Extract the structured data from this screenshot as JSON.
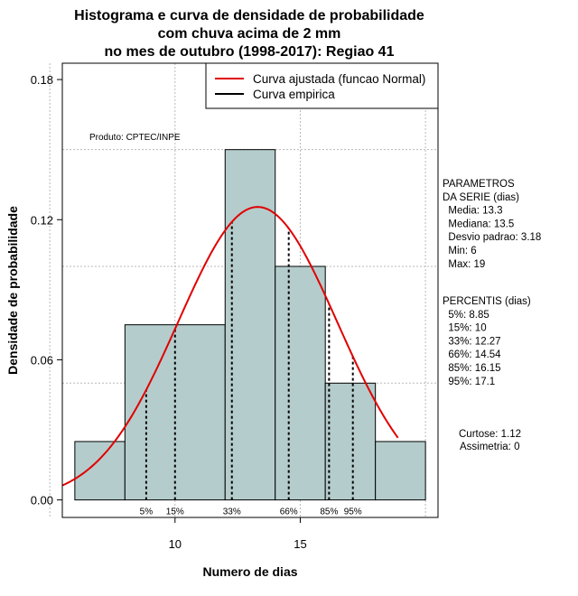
{
  "chart_data": {
    "type": "histogram",
    "title_lines": [
      "Histograma e curva de densidade de probabilidade",
      "com chuva acima de 2 mm",
      "no mes de outubro (1998-2017): Regiao 41"
    ],
    "xlabel": "Numero de dias",
    "ylabel": "Densidade de probabilidade",
    "xlim": [
      5.5,
      20.5
    ],
    "ylim": [
      -0.0075,
      0.187
    ],
    "x_ticks": [
      10,
      15
    ],
    "x_tick_labels": [
      "10",
      "15"
    ],
    "y_ticks": [
      0.0,
      0.06,
      0.12,
      0.18
    ],
    "y_tick_labels": [
      "0.00",
      "0.06",
      "0.12",
      "0.18"
    ],
    "grid": true,
    "grid_x": [
      5,
      10,
      15,
      20
    ],
    "grid_y": [
      0.05,
      0.1,
      0.15
    ],
    "bins": [
      {
        "start": 6,
        "end": 8,
        "density": 0.025
      },
      {
        "start": 8,
        "end": 12,
        "density": 0.075
      },
      {
        "start": 12,
        "end": 14,
        "density": 0.15
      },
      {
        "start": 14,
        "end": 16,
        "density": 0.1
      },
      {
        "start": 16,
        "end": 18,
        "density": 0.05
      },
      {
        "start": 18,
        "end": 20,
        "density": 0.025
      }
    ],
    "normal_curve": {
      "name": "Curva ajustada (funcao Normal)",
      "mean": 13.3,
      "sd": 3.18,
      "x_from": 5.5,
      "x_to": 18.9,
      "color": "#e00000"
    },
    "legend": [
      {
        "label": "Curva ajustada (funcao Normal)",
        "color": "#e00000"
      },
      {
        "label": "Curva empirica",
        "color": "#000000"
      }
    ],
    "percentile_lines": [
      {
        "label": "5%",
        "x": 8.85
      },
      {
        "label": "15%",
        "x": 10
      },
      {
        "label": "33%",
        "x": 12.27
      },
      {
        "label": "66%",
        "x": 14.54
      },
      {
        "label": "85%",
        "x": 16.15
      },
      {
        "label": "95%",
        "x": 17.1
      }
    ],
    "bar_color": "#b5cccc",
    "product_label": "Produto: CPTEC/INPE"
  },
  "side_panel": {
    "parametros": [
      "PARAMETROS",
      "DA SERIE (dias)",
      "  Media: 13.3",
      "  Mediana: 13.5",
      "  Desvio padrao: 3.18",
      "  Min: 6",
      "  Max: 19"
    ],
    "percentis": [
      "PERCENTIS (dias)",
      "  5%: 8.85",
      "  15%: 10",
      "  33%: 12.27",
      "  66%: 14.54",
      "  85%: 16.15",
      "  95%: 17.1"
    ],
    "curtose": "Curtose: 1.12",
    "assimetria": "Assimetria: 0"
  }
}
